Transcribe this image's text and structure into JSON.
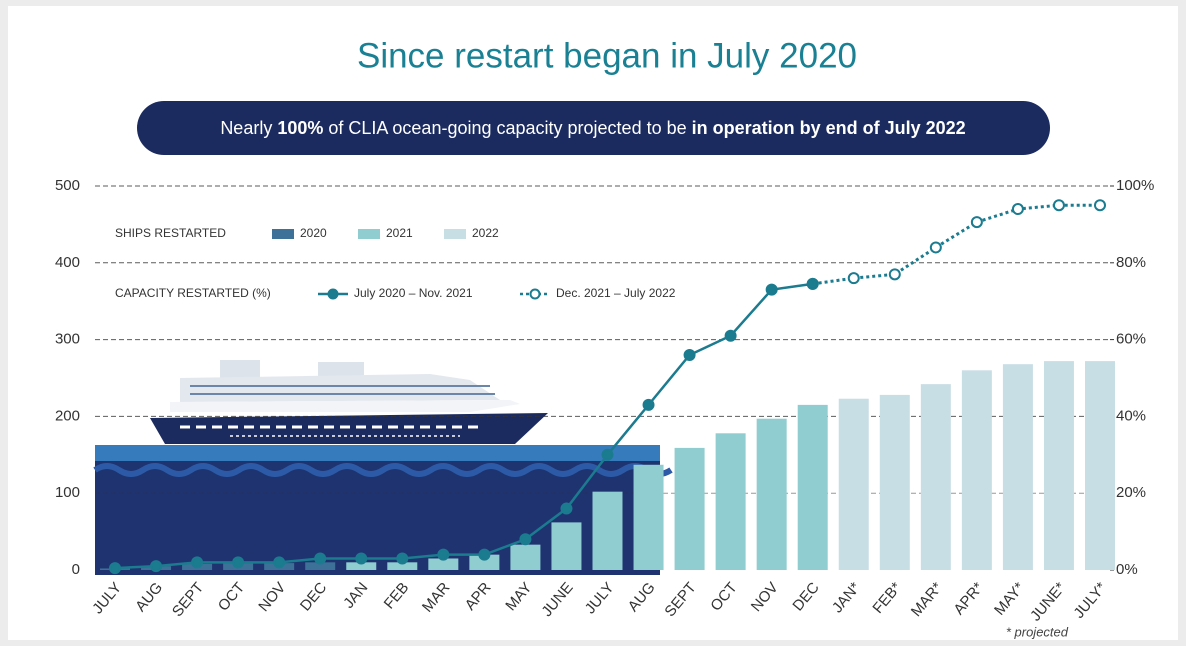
{
  "chart_data": {
    "type": "bar-line",
    "title": "Since restart began in July 2020",
    "banner": [
      "Nearly ",
      "100%",
      " of CLIA ocean-going capacity projected to be ",
      "in operation by end of July 2022"
    ],
    "legend_bars_title": "SHIPS RESTARTED",
    "legend_lines_title": "CAPACITY RESTARTED (%)",
    "footnote": "* projected",
    "categories": [
      "JULY",
      "AUG",
      "SEPT",
      "OCT",
      "NOV",
      "DEC",
      "JAN",
      "FEB",
      "MAR",
      "APR",
      "MAY",
      "JUNE",
      "JULY",
      "AUG",
      "SEPT",
      "OCT",
      "NOV",
      "DEC",
      "JAN*",
      "FEB*",
      "MAR*",
      "APR*",
      "MAY*",
      "JUNE*",
      "JULY*"
    ],
    "ylim": [
      0,
      500
    ],
    "yticks": [
      0,
      100,
      200,
      300,
      400,
      500
    ],
    "y2lim": [
      0,
      100
    ],
    "y2ticks": [
      {
        "value": 0,
        "label": "0%"
      },
      {
        "value": 20,
        "label": "20%"
      },
      {
        "value": 40,
        "label": "40%"
      },
      {
        "value": 60,
        "label": "60%"
      },
      {
        "value": 80,
        "label": "80%"
      },
      {
        "value": 100,
        "label": "100%"
      }
    ],
    "grid": true,
    "series": [
      {
        "name": "2020",
        "type": "bar",
        "color": "#3d7198",
        "values": [
          2,
          5,
          8,
          9,
          9,
          10,
          null,
          null,
          null,
          null,
          null,
          null,
          null,
          null,
          null,
          null,
          null,
          null,
          null,
          null,
          null,
          null,
          null,
          null,
          null
        ]
      },
      {
        "name": "2021",
        "type": "bar",
        "color": "#8fcdd1",
        "values": [
          null,
          null,
          null,
          null,
          null,
          null,
          10,
          10,
          15,
          20,
          33,
          62,
          102,
          137,
          159,
          178,
          197,
          215,
          null,
          null,
          null,
          null,
          null,
          null,
          null
        ]
      },
      {
        "name": "2022",
        "type": "bar",
        "color": "#c8dee5",
        "values": [
          null,
          null,
          null,
          null,
          null,
          null,
          null,
          null,
          null,
          null,
          null,
          null,
          null,
          null,
          null,
          null,
          null,
          null,
          223,
          228,
          242,
          260,
          268,
          272,
          272
        ]
      },
      {
        "name": "July 2020 – Nov. 2021",
        "type": "line",
        "axis": "y2",
        "style": "solid",
        "color": "#1b7b8f",
        "values": [
          0.5,
          1,
          2,
          2,
          2,
          3,
          3,
          3,
          4,
          4,
          8,
          16,
          30,
          43,
          56,
          61,
          73,
          74.5,
          null,
          null,
          null,
          null,
          null,
          null,
          null
        ]
      },
      {
        "name": "Dec. 2021 – July 2022",
        "type": "line",
        "axis": "y2",
        "style": "dashed",
        "color": "#1b7b8f",
        "values": [
          null,
          null,
          null,
          null,
          null,
          null,
          null,
          null,
          null,
          null,
          null,
          null,
          null,
          null,
          null,
          null,
          null,
          74.5,
          76,
          77,
          84,
          90.6,
          94,
          95,
          95
        ]
      }
    ]
  }
}
